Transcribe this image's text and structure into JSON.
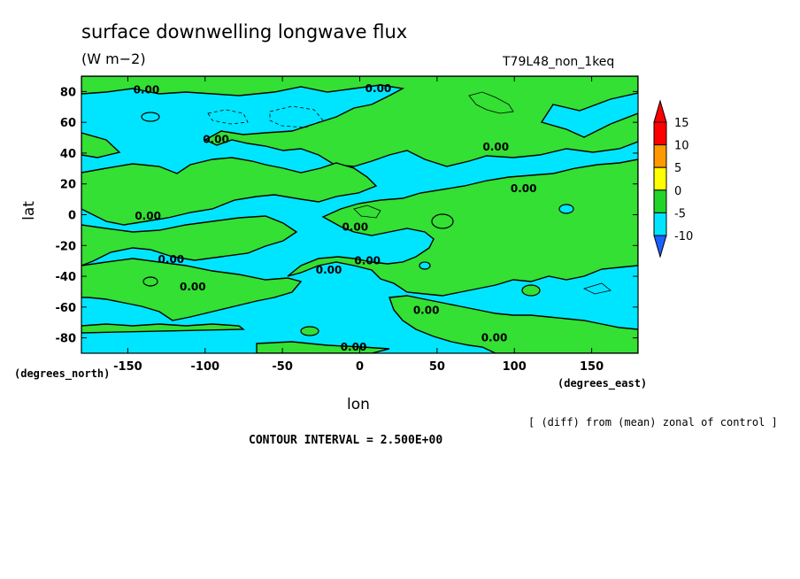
{
  "chart_data": {
    "type": "heatmap",
    "title": "surface downwelling longwave flux",
    "units": "(W m−2)",
    "run_label": "T79L48_non_1keq",
    "xlabel": "lon",
    "ylabel": "lat",
    "x_units": "(degrees_east)",
    "y_units": "(degrees_north)",
    "xlim": [
      -180,
      180
    ],
    "ylim": [
      -90,
      90
    ],
    "x_ticks": [
      -150,
      -100,
      -50,
      0,
      50,
      100,
      150
    ],
    "y_ticks": [
      80,
      60,
      40,
      20,
      0,
      -20,
      -40,
      -60,
      -80
    ],
    "contour_label": "0.00",
    "colorbar": {
      "levels": [
        -10,
        -5,
        0,
        5,
        10,
        15
      ],
      "colors": [
        "#1e90ff",
        "#00e5ff",
        "#22d42a",
        "#ffff00",
        "#ff9900",
        "#ff0000"
      ],
      "under_color": "#1e60ff",
      "over_color": "#ff0000"
    },
    "dominant_fill_colors": {
      "positive": "#33e033",
      "negative": "#00e5ff"
    },
    "annotation": "[ (diff) from (mean) zonal of control ]",
    "contour_interval": "CONTOUR INTERVAL = 2.500E+00"
  }
}
